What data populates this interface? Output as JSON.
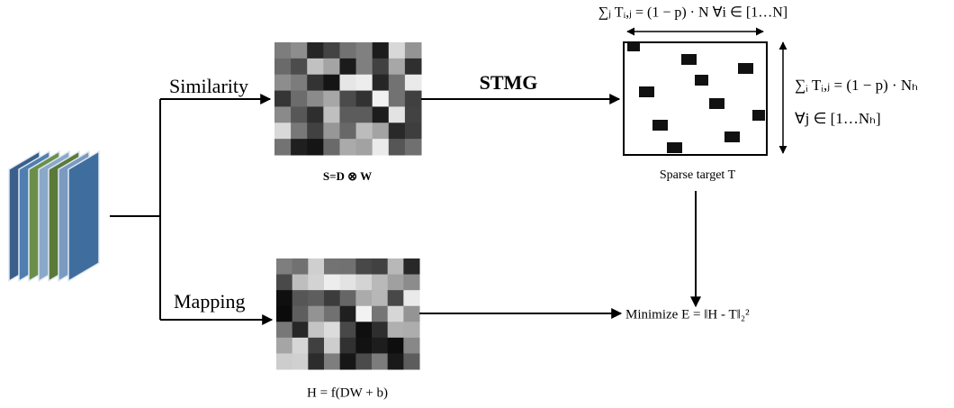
{
  "edges": {
    "similarity": "Similarity",
    "mapping": "Mapping",
    "stmg": "STMG"
  },
  "nodes": {
    "similarity_matrix": {
      "label": "S=D ⊗ W"
    },
    "hash_matrix": {
      "label": "H = f(DW + b)"
    },
    "sparse_target": {
      "label": "Sparse target T",
      "row_constraint": "∑ⱼ Tᵢ,ⱼ = (1 − p) · N ∀i ∈ [1…N]",
      "column_constraint": "∑ᵢ Tᵢ,ⱼ = (1 − p) · Nₕ",
      "column_constraint_range": "∀j ∈ [1…Nₕ]"
    },
    "objective": {
      "label": "Minimize E = ‖H - T‖₂²"
    }
  }
}
